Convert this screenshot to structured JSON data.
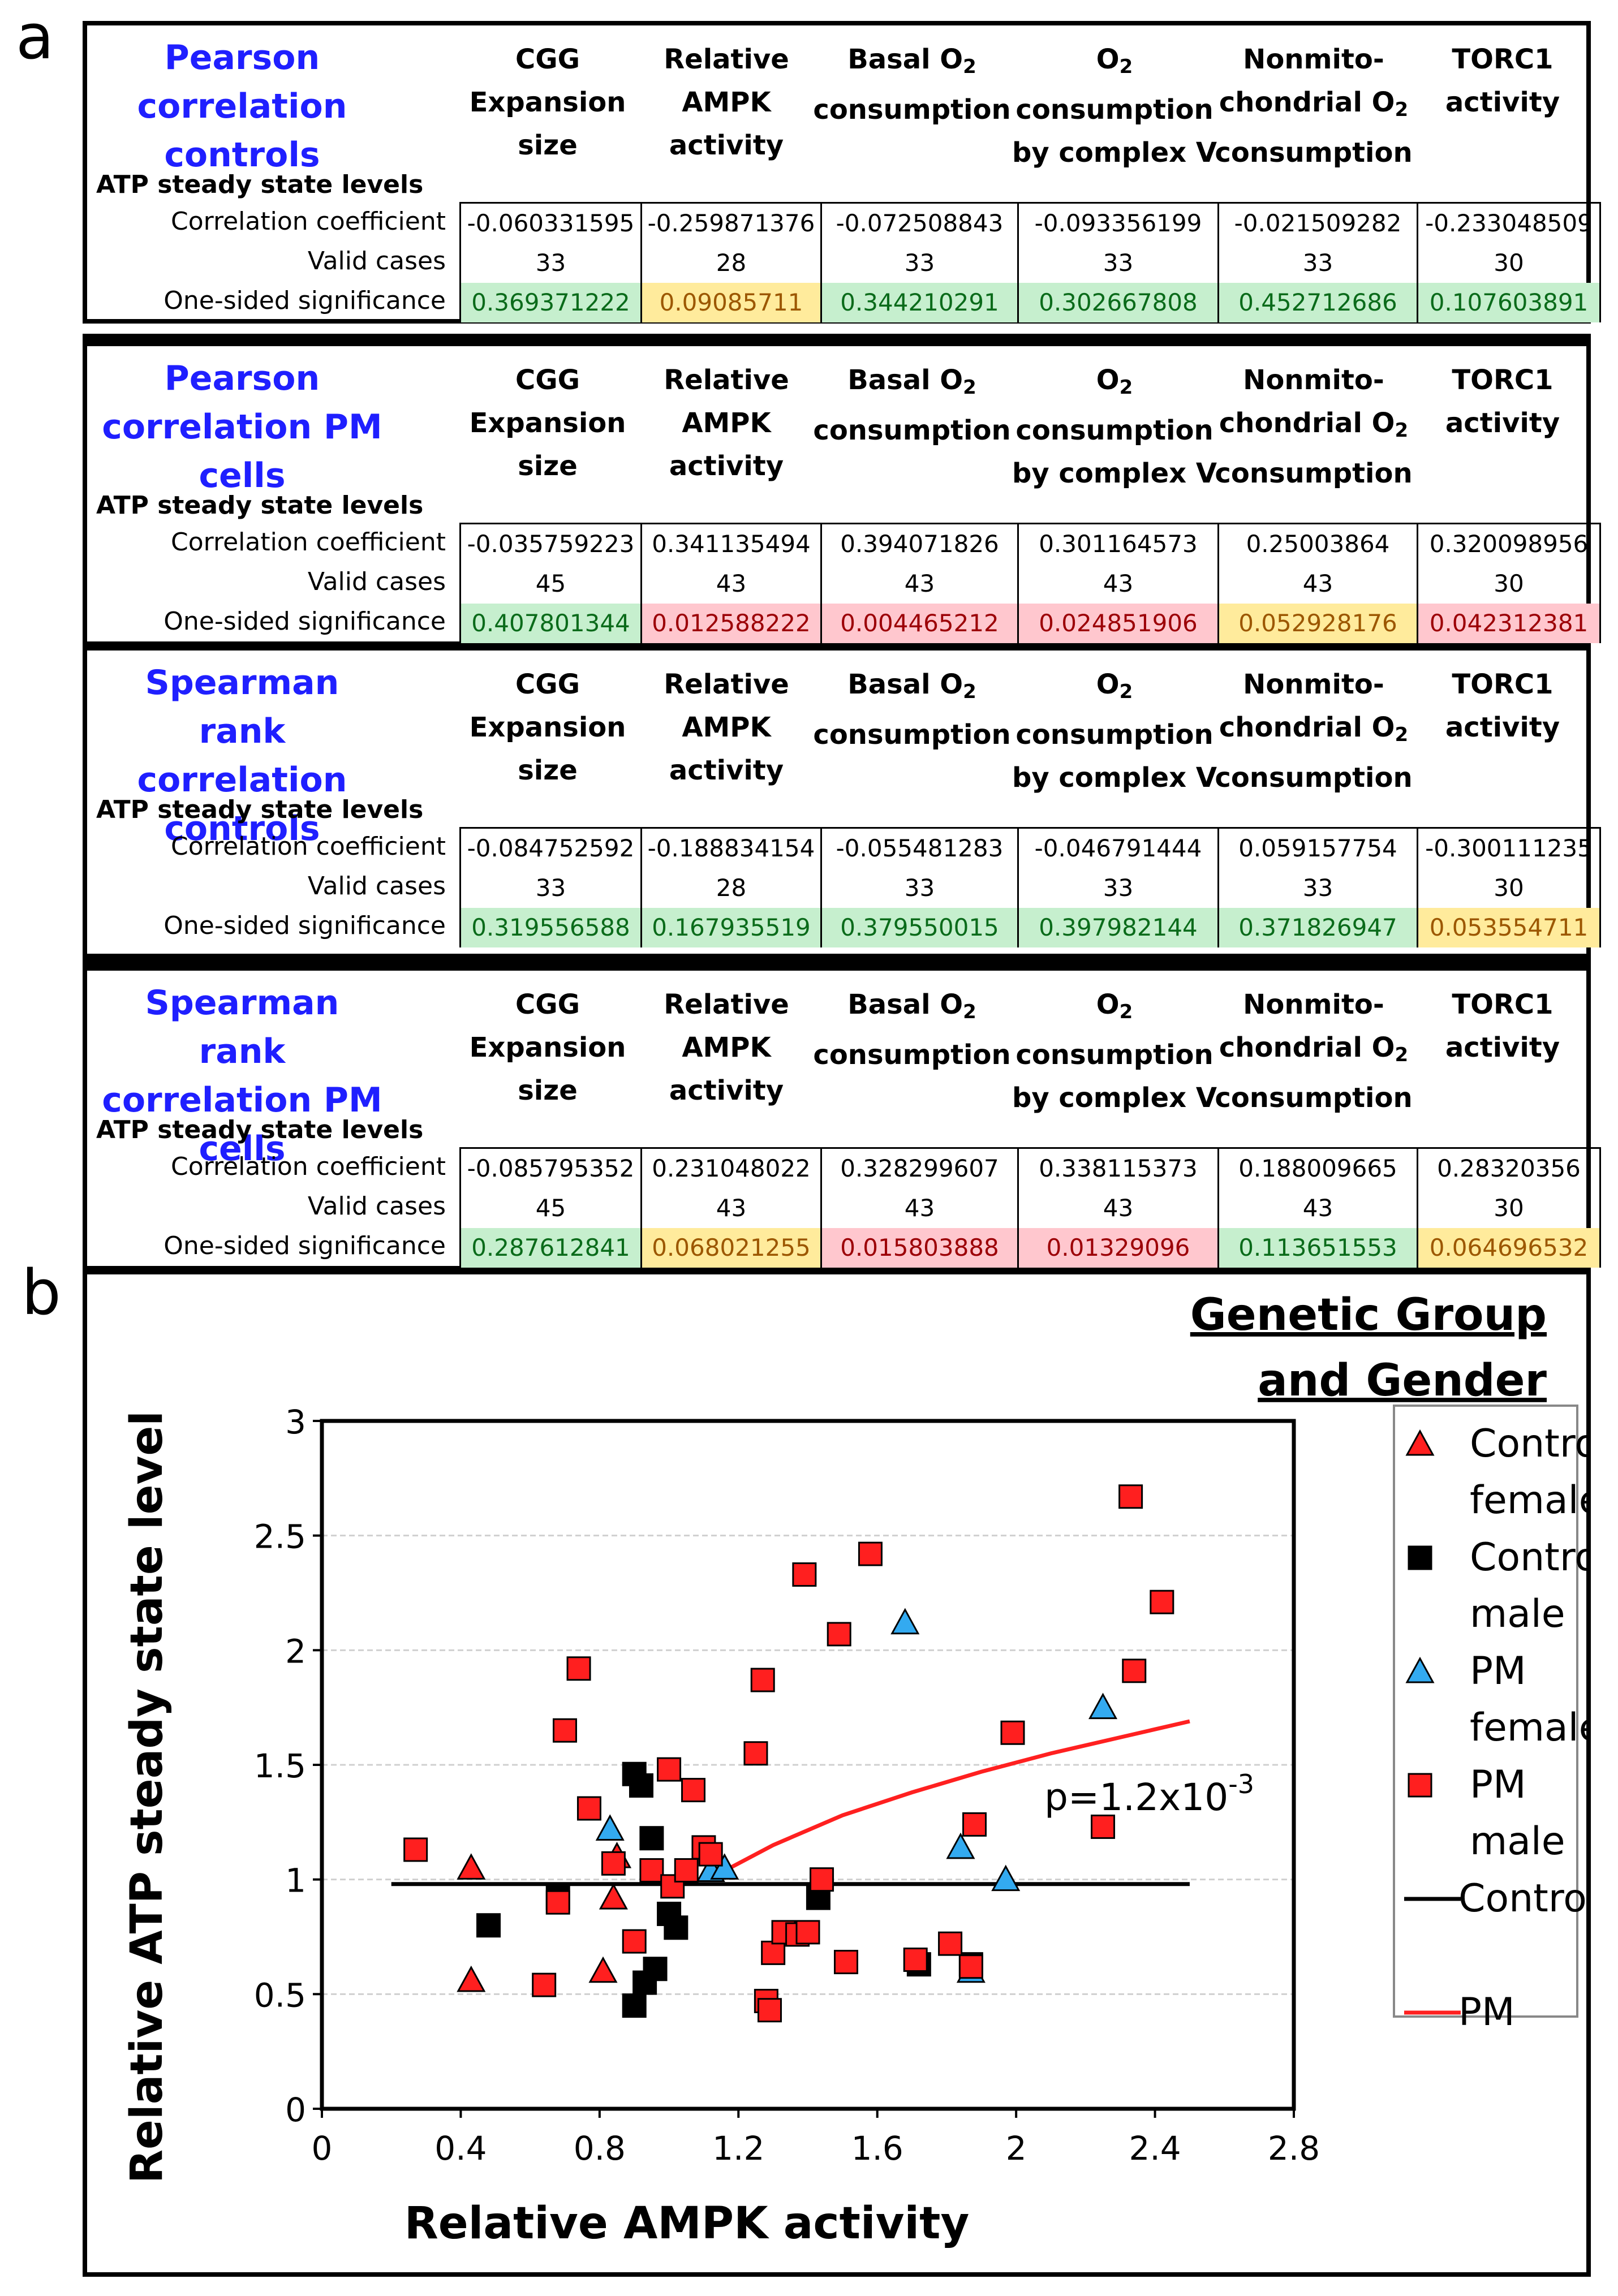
{
  "panel_a": {
    "letter": "a",
    "row_header": "ATP steady state levels",
    "row_labels": [
      "Correlation coefficient",
      "Valid cases",
      "One-sided significance"
    ],
    "columns": [
      "CGG\nExpansion\nsize",
      "Relative\nAMPK\nactivity",
      "Basal O2\nconsumption",
      "O2\nconsumption\nby complex V",
      "Nonmito-\nchondrial O2\nconsumption",
      "TORC1\nactivity"
    ],
    "tables": [
      {
        "title": "Pearson correlation controls",
        "coefficients": [
          "-0.060331595",
          "-0.259871376",
          "-0.072508843",
          "-0.093356199",
          "-0.021509282",
          "-0.233048509"
        ],
        "valid_cases": [
          "33",
          "28",
          "33",
          "33",
          "33",
          "30"
        ],
        "significance": [
          "0.369371222",
          "0.09085711",
          "0.344210291",
          "0.302667808",
          "0.452712686",
          "0.107603891"
        ],
        "significance_colors": [
          "green",
          "yellow",
          "green",
          "green",
          "green",
          "green"
        ]
      },
      {
        "title": "Pearson correlation PM cells",
        "coefficients": [
          "-0.035759223",
          "0.341135494",
          "0.394071826",
          "0.301164573",
          "0.25003864",
          "0.320098956"
        ],
        "valid_cases": [
          "45",
          "43",
          "43",
          "43",
          "43",
          "30"
        ],
        "significance": [
          "0.407801344",
          "0.012588222",
          "0.004465212",
          "0.024851906",
          "0.052928176",
          "0.042312381"
        ],
        "significance_colors": [
          "green",
          "red",
          "red",
          "red",
          "yellow",
          "red"
        ]
      },
      {
        "title": "Spearman rank correlation controls",
        "coefficients": [
          "-0.084752592",
          "-0.188834154",
          "-0.055481283",
          "-0.046791444",
          "0.059157754",
          "-0.300111235"
        ],
        "valid_cases": [
          "33",
          "28",
          "33",
          "33",
          "33",
          "30"
        ],
        "significance": [
          "0.319556588",
          "0.167935519",
          "0.379550015",
          "0.397982144",
          "0.371826947",
          "0.053554711"
        ],
        "significance_colors": [
          "green",
          "green",
          "green",
          "green",
          "green",
          "yellow"
        ]
      },
      {
        "title": "Spearman rank correlation PM cells",
        "coefficients": [
          "-0.085795352",
          "0.231048022",
          "0.328299607",
          "0.338115373",
          "0.188009665",
          "0.28320356"
        ],
        "valid_cases": [
          "45",
          "43",
          "43",
          "43",
          "43",
          "30"
        ],
        "significance": [
          "0.287612841",
          "0.068021255",
          "0.015803888",
          "0.01329096",
          "0.113651553",
          "0.064696532"
        ],
        "significance_colors": [
          "green",
          "yellow",
          "red",
          "red",
          "green",
          "yellow"
        ]
      }
    ]
  },
  "panel_b": {
    "letter": "b"
  },
  "colors": {
    "title_blue": "#1f1fff",
    "control_marker": "#000000",
    "pm_female_marker": "#33aaf0",
    "red_marker": "#ff1f1f",
    "pm_line": "#ff2020"
  },
  "chart_data": {
    "type": "scatter",
    "title": "",
    "xlabel": "Relative AMPK activity",
    "ylabel": "Relative ATP steady state level",
    "xlim": [
      0,
      2.8
    ],
    "ylim": [
      0,
      3
    ],
    "xticks": [
      "0",
      "0.4",
      "0.8",
      "1.2",
      "1.6",
      "2",
      "2.4",
      "2.8"
    ],
    "yticks": [
      "0",
      "0.5",
      "1",
      "1.5",
      "2",
      "2.5",
      "3"
    ],
    "legend_title": "Genetic Group and Gender",
    "legend_position": "right",
    "annotation": "p=1.2x10",
    "annotation_exp": "-3",
    "series": [
      {
        "name": "Control female",
        "marker": "triangle",
        "fill": "red",
        "points": [
          [
            0.43,
            0.56
          ],
          [
            0.43,
            1.05
          ],
          [
            0.81,
            0.6
          ],
          [
            0.84,
            0.92
          ],
          [
            0.85,
            1.1
          ]
        ]
      },
      {
        "name": "Control male",
        "marker": "square",
        "fill": "black",
        "points": [
          [
            0.48,
            0.8
          ],
          [
            0.68,
            0.92
          ],
          [
            0.9,
            1.46
          ],
          [
            0.9,
            0.45
          ],
          [
            0.92,
            1.41
          ],
          [
            0.93,
            0.55
          ],
          [
            0.95,
            1.18
          ],
          [
            0.96,
            0.61
          ],
          [
            1.0,
            0.85
          ],
          [
            1.02,
            0.79
          ],
          [
            1.43,
            0.92
          ],
          [
            1.72,
            0.63
          ],
          [
            1.87,
            0.63
          ]
        ]
      },
      {
        "name": "PM female",
        "marker": "triangle",
        "fill": "cyan",
        "points": [
          [
            0.83,
            1.22
          ],
          [
            1.12,
            1.04
          ],
          [
            1.16,
            1.05
          ],
          [
            1.68,
            2.12
          ],
          [
            1.84,
            1.14
          ],
          [
            1.97,
            1.0
          ],
          [
            1.87,
            0.6
          ],
          [
            2.25,
            1.75
          ]
        ]
      },
      {
        "name": "PM male",
        "marker": "square",
        "fill": "red",
        "points": [
          [
            0.27,
            1.13
          ],
          [
            0.64,
            0.54
          ],
          [
            0.68,
            0.9
          ],
          [
            0.7,
            1.65
          ],
          [
            0.74,
            1.92
          ],
          [
            0.77,
            1.31
          ],
          [
            0.84,
            1.07
          ],
          [
            0.9,
            0.73
          ],
          [
            0.95,
            1.04
          ],
          [
            1.0,
            1.48
          ],
          [
            1.01,
            0.97
          ],
          [
            1.05,
            1.04
          ],
          [
            1.07,
            1.39
          ],
          [
            1.1,
            1.14
          ],
          [
            1.12,
            1.11
          ],
          [
            1.25,
            1.55
          ],
          [
            1.27,
            1.87
          ],
          [
            1.28,
            0.47
          ],
          [
            1.29,
            0.43
          ],
          [
            1.3,
            0.68
          ],
          [
            1.33,
            0.77
          ],
          [
            1.37,
            0.76
          ],
          [
            1.39,
            2.33
          ],
          [
            1.4,
            0.77
          ],
          [
            1.44,
            1.0
          ],
          [
            1.49,
            2.07
          ],
          [
            1.51,
            0.64
          ],
          [
            1.58,
            2.42
          ],
          [
            1.71,
            0.65
          ],
          [
            1.81,
            0.72
          ],
          [
            1.87,
            0.62
          ],
          [
            1.88,
            1.24
          ],
          [
            1.99,
            1.64
          ],
          [
            2.25,
            1.23
          ],
          [
            2.33,
            2.67
          ],
          [
            2.34,
            1.91
          ],
          [
            2.42,
            2.21
          ]
        ]
      },
      {
        "name": "Control",
        "type": "line",
        "color": "black",
        "points": [
          [
            0.2,
            0.98
          ],
          [
            2.5,
            0.98
          ]
        ]
      },
      {
        "name": "PM",
        "type": "line",
        "color": "red",
        "points": [
          [
            1.15,
            1.03
          ],
          [
            1.3,
            1.15
          ],
          [
            1.5,
            1.28
          ],
          [
            1.7,
            1.38
          ],
          [
            1.9,
            1.47
          ],
          [
            2.1,
            1.55
          ],
          [
            2.3,
            1.62
          ],
          [
            2.5,
            1.69
          ]
        ]
      }
    ]
  }
}
